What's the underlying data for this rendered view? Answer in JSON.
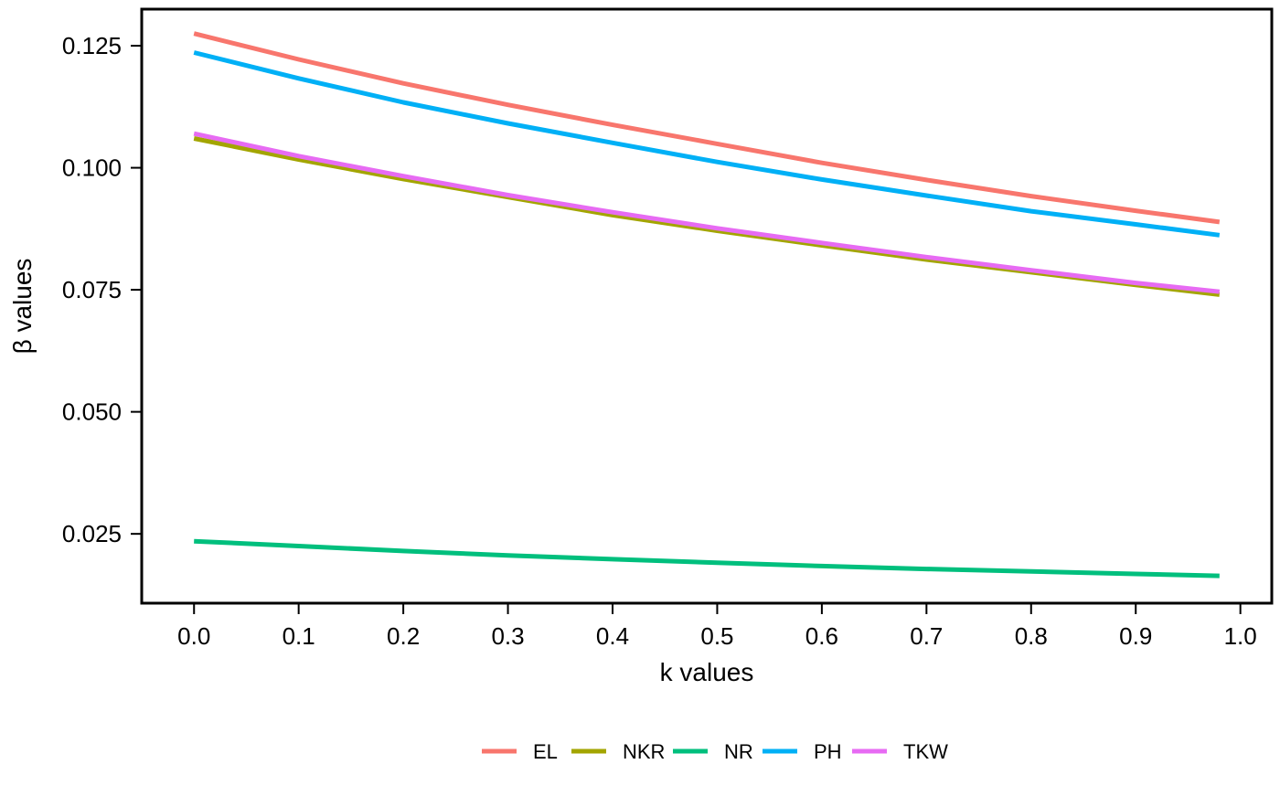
{
  "chart_data": {
    "type": "line",
    "xlabel": "k values",
    "ylabel": "β values",
    "xlim": [
      -0.05,
      1.03
    ],
    "ylim": [
      0.0108,
      0.1325
    ],
    "x_ticks": [
      "0.0",
      "0.1",
      "0.2",
      "0.3",
      "0.4",
      "0.5",
      "0.6",
      "0.7",
      "0.8",
      "0.9",
      "1.0"
    ],
    "y_ticks": [
      "0.025",
      "0.050",
      "0.075",
      "0.100",
      "0.125"
    ],
    "x": [
      0.0,
      0.1,
      0.2,
      0.3,
      0.4,
      0.5,
      0.6,
      0.7,
      0.8,
      0.9,
      0.98
    ],
    "legend_position": "bottom",
    "grid": false,
    "series": [
      {
        "name": "EL",
        "color": "#F8766D",
        "values": [
          0.1275,
          0.1222,
          0.1173,
          0.1129,
          0.1088,
          0.1049,
          0.101,
          0.0975,
          0.0942,
          0.0912,
          0.0889
        ]
      },
      {
        "name": "NKR",
        "color": "#A3A500",
        "values": [
          0.106,
          0.1017,
          0.0977,
          0.094,
          0.0903,
          0.0871,
          0.0841,
          0.0812,
          0.0786,
          0.076,
          0.074
        ]
      },
      {
        "name": "NR",
        "color": "#00BF7D",
        "values": [
          0.0235,
          0.0225,
          0.0215,
          0.0206,
          0.0198,
          0.0191,
          0.0184,
          0.0178,
          0.0173,
          0.0168,
          0.0164
        ]
      },
      {
        "name": "PH",
        "color": "#00B0F6",
        "values": [
          0.1236,
          0.1183,
          0.1134,
          0.1091,
          0.1051,
          0.1012,
          0.0976,
          0.0943,
          0.0911,
          0.0884,
          0.0862
        ]
      },
      {
        "name": "TKW",
        "color": "#E76BF3",
        "values": [
          0.107,
          0.1024,
          0.0983,
          0.0944,
          0.0909,
          0.0876,
          0.0846,
          0.0817,
          0.079,
          0.0764,
          0.0746
        ]
      }
    ]
  }
}
